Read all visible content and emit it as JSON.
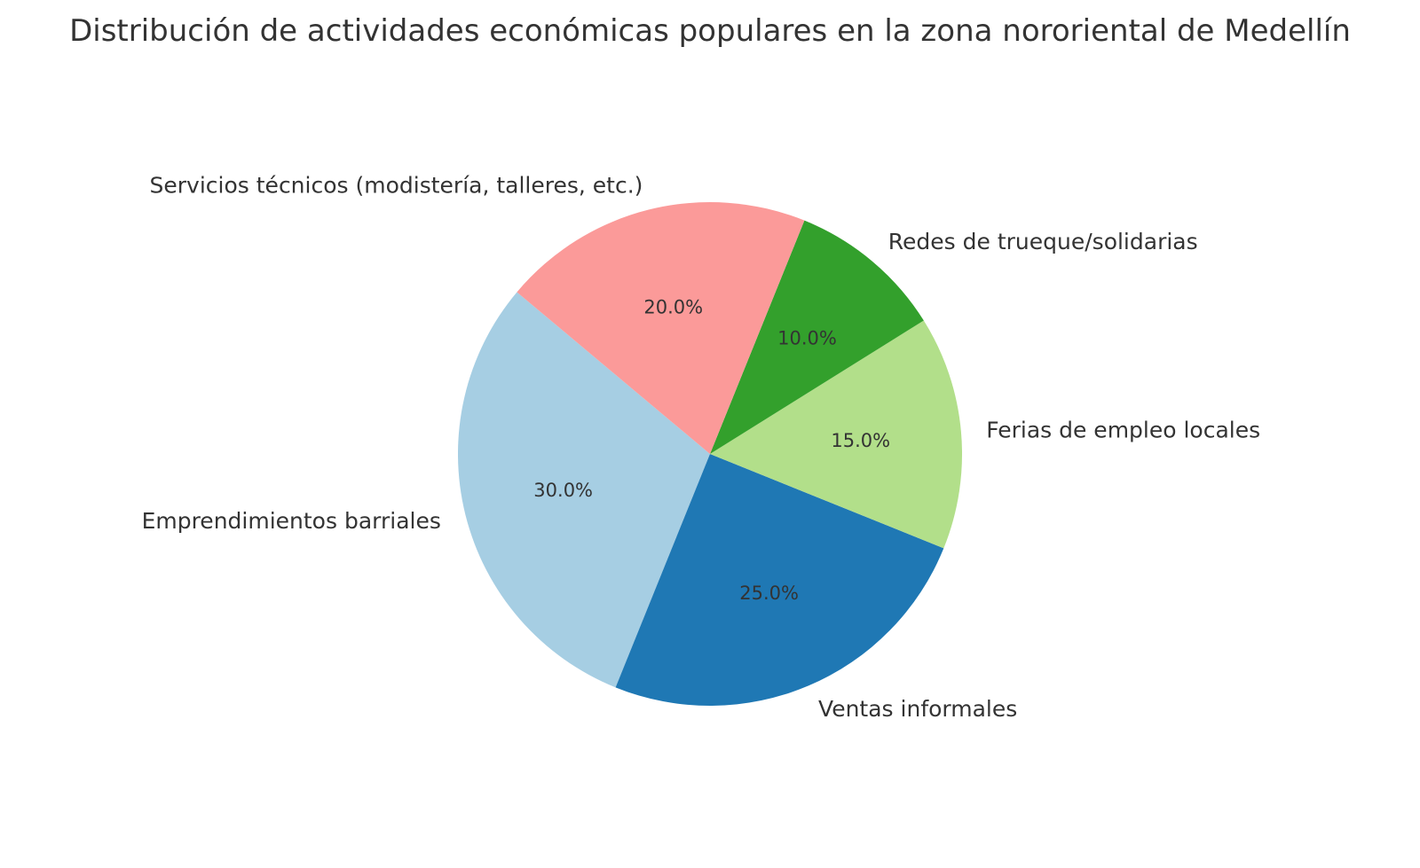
{
  "chart_data": {
    "type": "pie",
    "title": "Distribución de actividades económicas populares en la zona nororiental de Medellín",
    "start_angle_deg": 140,
    "direction": "counterclockwise",
    "legend": "none",
    "slices": [
      {
        "label": "Emprendimientos barriales",
        "value": 30.0,
        "pct_text": "30.0%",
        "color": "#a6cee3"
      },
      {
        "label": "Ventas informales",
        "value": 25.0,
        "pct_text": "25.0%",
        "color": "#1f78b4"
      },
      {
        "label": "Ferias de empleo locales",
        "value": 15.0,
        "pct_text": "15.0%",
        "color": "#b2df8a"
      },
      {
        "label": "Redes de trueque/solidarias",
        "value": 10.0,
        "pct_text": "10.0%",
        "color": "#33a02c"
      },
      {
        "label": "Servicios técnicos (modistería, talleres, etc.)",
        "value": 20.0,
        "pct_text": "20.0%",
        "color": "#fb9a99"
      }
    ]
  }
}
